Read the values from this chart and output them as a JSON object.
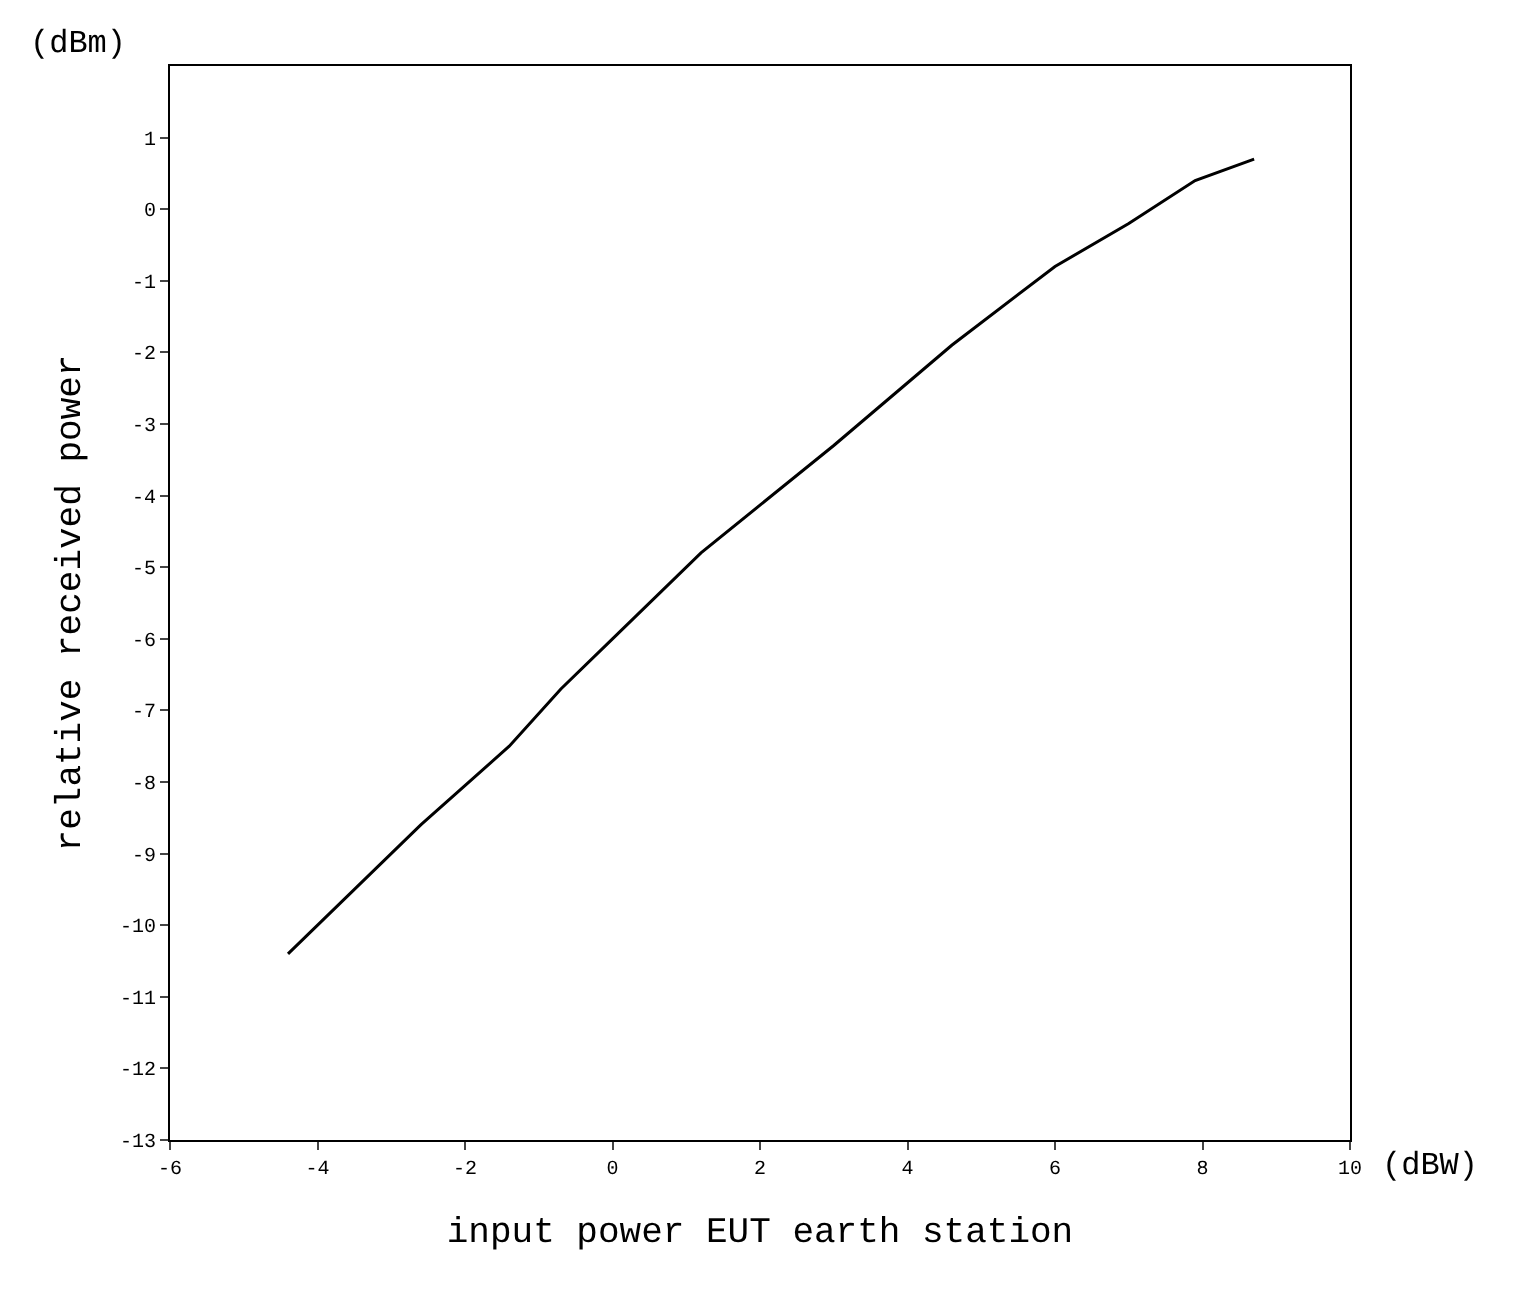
{
  "chart_data": {
    "type": "line",
    "xlabel": "input power EUT earth station",
    "ylabel": "relative received power",
    "annotations": [
      "(dBm)",
      "(dBW)"
    ],
    "x": [
      -4.4,
      -2.6,
      -1.4,
      -0.7,
      0.0,
      1.2,
      3.0,
      4.6,
      6.0,
      7.0,
      7.9,
      8.7
    ],
    "series": [
      {
        "color": "#000000",
        "values": [
          -10.4,
          -8.6,
          -7.5,
          -6.7,
          -6.0,
          -4.8,
          -3.3,
          -1.9,
          -0.8,
          -0.2,
          0.4,
          0.7
        ]
      }
    ],
    "xlim": [
      -6,
      10
    ],
    "xticks": [
      -6,
      -4,
      -2,
      0,
      2,
      4,
      6,
      8,
      10
    ],
    "ylim": [
      -13,
      2
    ],
    "yticks": [
      -13,
      -12,
      -11,
      -10,
      -9,
      -8,
      -7,
      -6,
      -5,
      -4,
      -3,
      -2,
      -1,
      0,
      1
    ],
    "marker": "none",
    "line_style": "solid"
  }
}
